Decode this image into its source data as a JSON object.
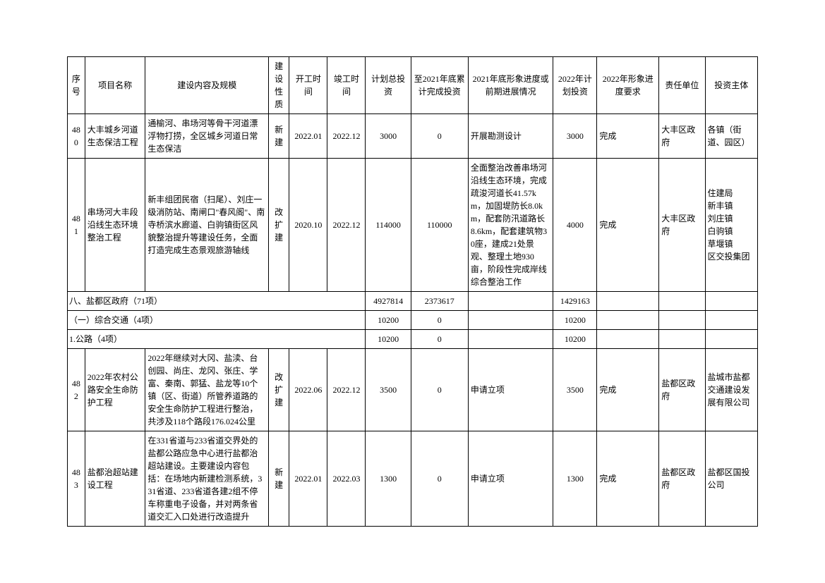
{
  "headers": {
    "seq": "序号",
    "name": "项目名称",
    "content": "建设内容及规模",
    "nature": "建设性质",
    "start": "开工时间",
    "end": "竣工时间",
    "total": "计划总投资",
    "cum": "至2021年底累计完成投资",
    "progress": "2021年底形象进度或前期进展情况",
    "plan": "2022年计划投资",
    "req": "2022年形象进度要求",
    "unit": "责任单位",
    "investor": "投资主体"
  },
  "rows": [
    {
      "type": "data",
      "seq": "480",
      "name": "大丰城乡河道生态保洁工程",
      "content": "通榆河、串场河等骨干河道漂浮物打捞，全区城乡河道日常生态保洁",
      "nature": "新建",
      "start": "2022.01",
      "end": "2022.12",
      "total": "3000",
      "cum": "0",
      "progress": "开展勘测设计",
      "plan": "3000",
      "req": "完成",
      "unit": "大丰区政府",
      "investor": "各镇（街道、园区）"
    },
    {
      "type": "data",
      "seq": "481",
      "name": "串场河大丰段沿线生态环境整治工程",
      "content": "新丰组团民宿（扫尾）、刘庄一级消防站、南闸口\"春风阁\"、南寺桥滨水廊道、白驹镇街区风貌整治提升等建设任务，全面打造完成生态景观旅游轴线",
      "nature": "改扩建",
      "start": "2020.10",
      "end": "2022.12",
      "total": "114000",
      "cum": "110000",
      "progress": "全面整治改善串场河沿线生态环境，完成疏浚河道长41.57km，加固堤防长8.0km，配套防汛道路长8.6km，配套建筑物30座，建成21处景观、整理土地930亩，阶段性完成岸线综合整治工作",
      "plan": "4000",
      "req": "完成",
      "unit": "大丰区政府",
      "investor": "住建局\n新丰镇\n刘庄镇\n白驹镇\n草堰镇\n区交投集团"
    },
    {
      "type": "section",
      "label": "八、盐都区政府（71项）",
      "total": "4927814",
      "cum": "2373617",
      "plan": "1429163"
    },
    {
      "type": "section",
      "label": "（一）综合交通（4项）",
      "total": "10200",
      "cum": "0",
      "plan": "10200"
    },
    {
      "type": "section",
      "label": "1.公路（4项）",
      "total": "10200",
      "cum": "0",
      "plan": "10200"
    },
    {
      "type": "data",
      "seq": "482",
      "name": "2022年农村公路安全生命防护工程",
      "content": "2022年继续对大冈、盐渎、台创园、尚庄、龙冈、张庄、学富、秦南、郭猛、盐龙等10个镇（区、街道）所管养道路的安全生命防护工程进行整治，共涉及118个路段176.024公里",
      "nature": "改扩建",
      "start": "2022.06",
      "end": "2022.12",
      "total": "3500",
      "cum": "0",
      "progress": "申请立项",
      "plan": "3500",
      "req": "完成",
      "unit": "盐都区政府",
      "investor": "盐城市盐都交通建设发展有限公司"
    },
    {
      "type": "data",
      "seq": "483",
      "name": "盐都治超站建设工程",
      "content": "在331省道与233省道交界处的盐都公路应急中心进行盐都治超站建设。主要建设内容包括：在场地内新建检测系统，331省道、233省道各建2组不停车称重电子设备，并对两条省道交汇入口处进行改造提升",
      "nature": "新建",
      "start": "2022.01",
      "end": "2022.03",
      "total": "1300",
      "cum": "0",
      "progress": "申请立项",
      "plan": "1300",
      "req": "完成",
      "unit": "盐都区政府",
      "investor": "盐都区国投公司"
    }
  ]
}
